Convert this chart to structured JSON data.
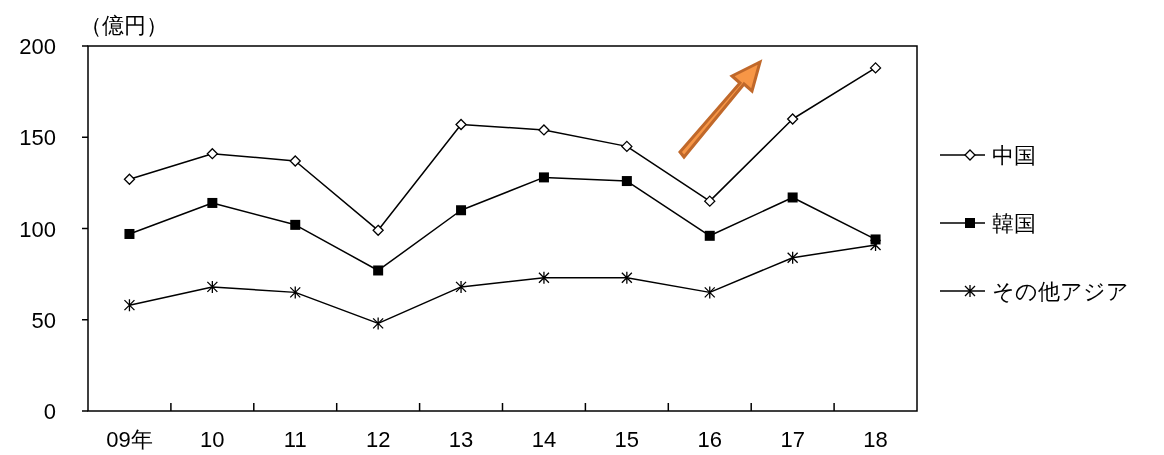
{
  "chart_data": {
    "type": "line",
    "ylabel": "（億円）",
    "categories": [
      "09年",
      "10",
      "11",
      "12",
      "13",
      "14",
      "15",
      "16",
      "17",
      "18"
    ],
    "series": [
      {
        "name": "中国",
        "color": "#000000",
        "marker": "diamond",
        "values": [
          127,
          141,
          137,
          99,
          157,
          154,
          145,
          115,
          160,
          188
        ]
      },
      {
        "name": "韓国",
        "color": "#000000",
        "marker": "square",
        "values": [
          97,
          114,
          102,
          77,
          110,
          128,
          126,
          96,
          117,
          94
        ]
      },
      {
        "name": "その他アジア",
        "color": "#000000",
        "marker": "cross",
        "values": [
          58,
          68,
          65,
          48,
          68,
          73,
          73,
          65,
          84,
          91
        ]
      }
    ],
    "ylim": [
      0,
      200
    ],
    "yticks": [
      0,
      50,
      100,
      150,
      200
    ],
    "grid": false,
    "legend": "right",
    "line_style": "solid"
  }
}
